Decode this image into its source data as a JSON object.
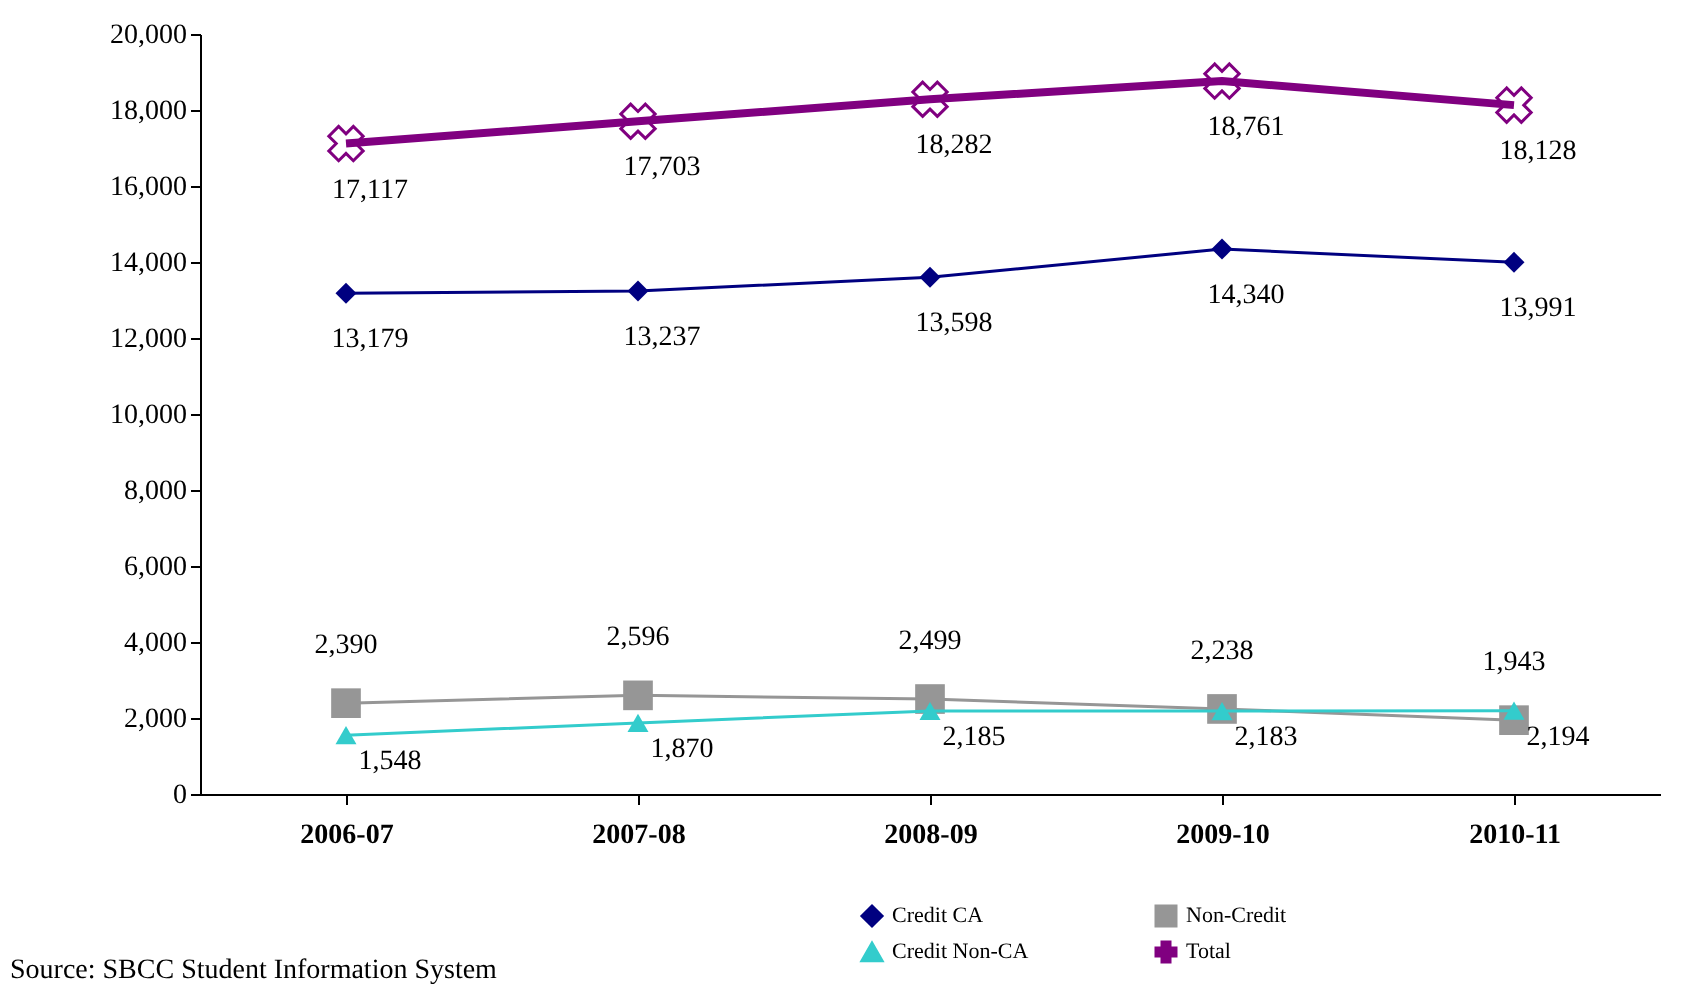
{
  "chart_data": {
    "type": "line",
    "categories": [
      "2006-07",
      "2007-08",
      "2008-09",
      "2009-10",
      "2010-11"
    ],
    "series": [
      {
        "name": "Credit CA",
        "color": "#000080",
        "marker": "diamond",
        "values": [
          13179,
          13237,
          13598,
          14340,
          13991
        ],
        "value_labels": [
          "13,179",
          "13,237",
          "13,598",
          "14,340",
          "13,991"
        ]
      },
      {
        "name": "Non-Credit",
        "color": "#969696",
        "marker": "square",
        "values": [
          2390,
          2596,
          2499,
          2238,
          1943
        ],
        "value_labels": [
          "2,390",
          "2,596",
          "2,499",
          "2,238",
          "1,943"
        ]
      },
      {
        "name": "Credit Non-CA",
        "color": "#33cccc",
        "marker": "triangle",
        "values": [
          1548,
          1870,
          2185,
          2183,
          2194
        ],
        "value_labels": [
          "1,548",
          "1,870",
          "2,185",
          "2,183",
          "2,194"
        ]
      },
      {
        "name": "Total",
        "color": "#800080",
        "marker": "cross",
        "values": [
          17117,
          17703,
          18282,
          18761,
          18128
        ],
        "value_labels": [
          "17,117",
          "17,703",
          "18,282",
          "18,761",
          "18,128"
        ]
      }
    ],
    "ylim": [
      0,
      20000
    ],
    "yticks": [
      0,
      {
        "value": 2000,
        "label": "2,000"
      },
      {
        "value": 4000,
        "label": "4,000"
      },
      {
        "value": 6000,
        "label": "6,000"
      },
      {
        "value": 8000,
        "label": "8,000"
      },
      {
        "value": 10000,
        "label": "10,000"
      },
      {
        "value": 12000,
        "label": "12,000"
      },
      {
        "value": 14000,
        "label": "14,000"
      },
      {
        "value": 16000,
        "label": "16,000"
      },
      {
        "value": 18000,
        "label": "18,000"
      },
      {
        "value": 20000,
        "label": "20,000"
      }
    ],
    "grid": false,
    "legend": "bottom right",
    "line_style": "solid",
    "annotations": [
      "Source: SBCC Student Information System"
    ]
  }
}
